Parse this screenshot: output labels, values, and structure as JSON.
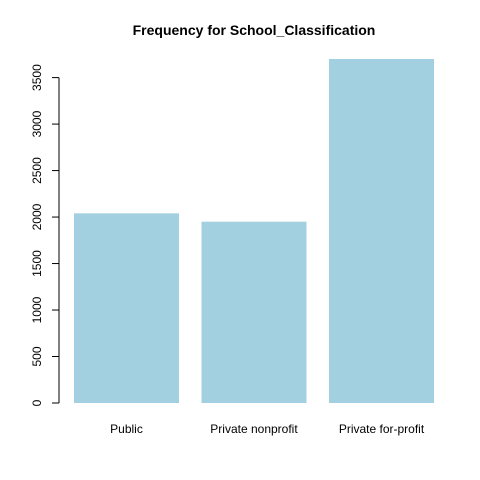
{
  "chart_data": {
    "type": "bar",
    "title": "Frequency for School_Classification",
    "xlabel": "",
    "ylabel": "",
    "categories": [
      "Public",
      "Private nonprofit",
      "Private for-profit"
    ],
    "values": [
      2040,
      1950,
      3700
    ],
    "ylim": [
      0,
      3700
    ],
    "yticks": [
      0,
      500,
      1000,
      1500,
      2000,
      2500,
      3000,
      3500
    ],
    "bar_color": "#a2d0e0",
    "grid": false,
    "legend": "none"
  }
}
